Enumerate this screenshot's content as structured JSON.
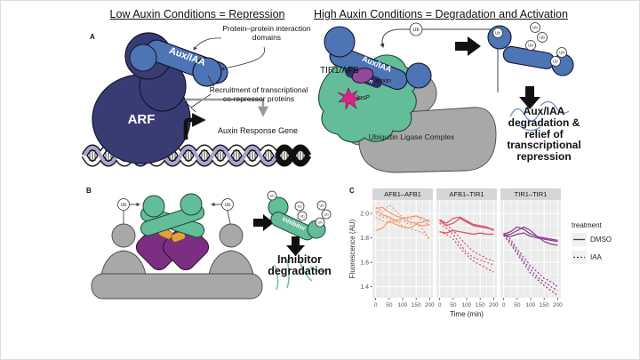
{
  "figure": {
    "panel_a": {
      "label": "A",
      "title": "Low Auxin Conditions = Repression",
      "arf_label": "ARF",
      "aux_iaa_label": "Aux/IAA",
      "callout_interaction": "Protein–protein interaction domains",
      "callout_recruitment": "Recruitment of transcriptional co-repressor proteins",
      "gene_label": "Auxin Response Gene"
    },
    "panel_high_auxin": {
      "title": "High Auxin Conditions = Degradation and Activation",
      "tir1_afb_label": "TIR1/AFB",
      "aux_iaa_label": "Aux/IAA",
      "degron_label": "Degron",
      "auxin_label": "auxin",
      "insp_label": "InsP",
      "ub_label": "Ub",
      "complex_label": "Ubiquitin Ligase Complex",
      "outcome": "Aux/IAA degradation & relief of transcriptional repression"
    },
    "panel_b": {
      "label": "B",
      "ub_label": "Ub",
      "inhibitor_label": "Inhibitor",
      "outcome": "Inhibitor degradation"
    },
    "panel_c": {
      "label": "C"
    }
  },
  "colors": {
    "arf_navy": "#383C72",
    "aux_iaa_blue": "#4D74B4",
    "tir1_green": "#63BD98",
    "auxin_purple": "#8F4A9C",
    "insp_magenta": "#E0218A",
    "complex_gray": "#A8A8A8",
    "panel_b_purple": "#7C2E83",
    "panel_b_orange": "#E2A23B",
    "dna_lavender": "#A9A5CE",
    "facet_afb1_afb1": "#F09B6E",
    "facet_afb1_tir1": "#D94F63",
    "facet_tir1_tir1": "#8B3B8F"
  },
  "chart_data": {
    "type": "line",
    "title": "",
    "ylabel": "Fluorescence (AU)",
    "xlabel": "Time (min)",
    "x": [
      0,
      25,
      50,
      75,
      100,
      125,
      150,
      175,
      200
    ],
    "xticks": [
      0,
      50,
      100,
      150,
      200
    ],
    "yticks": [
      1.4,
      1.6,
      1.8,
      2.0
    ],
    "ylim": [
      1.31,
      2.11
    ],
    "grid": true,
    "legend": {
      "title": "treatment",
      "position": "right",
      "items": [
        {
          "label": "DMSO",
          "linetype": "solid"
        },
        {
          "label": "IAA",
          "linetype": "dotted"
        }
      ]
    },
    "facets": [
      {
        "title": "AFB1–AFB1",
        "color": "#F09B6E",
        "series": [
          {
            "treatment": "DMSO",
            "values": [
              2.04,
              2.05,
              2.01,
              1.98,
              1.96,
              1.97,
              1.98,
              1.96,
              1.93
            ]
          },
          {
            "treatment": "DMSO",
            "values": [
              2.02,
              1.99,
              1.97,
              1.94,
              1.96,
              1.93,
              1.92,
              1.93,
              1.95
            ]
          },
          {
            "treatment": "DMSO",
            "values": [
              1.86,
              1.88,
              1.94,
              1.91,
              1.89,
              1.88,
              1.91,
              1.9,
              1.91
            ]
          },
          {
            "treatment": "IAA",
            "values": [
              2.05,
              2.01,
              2.07,
              2.02,
              1.97,
              1.95,
              1.98,
              1.94,
              1.9
            ]
          },
          {
            "treatment": "IAA",
            "values": [
              2.0,
              1.97,
              1.96,
              1.93,
              1.94,
              1.91,
              1.93,
              1.87,
              1.78
            ]
          },
          {
            "treatment": "IAA",
            "values": [
              1.97,
              1.94,
              1.92,
              1.95,
              1.9,
              1.88,
              1.86,
              1.84,
              1.8
            ]
          }
        ]
      },
      {
        "title": "AFB1–TIR1",
        "color": "#D94F63",
        "series": [
          {
            "treatment": "DMSO",
            "values": [
              1.95,
              1.92,
              1.96,
              1.97,
              1.94,
              1.91,
              1.9,
              1.89,
              1.86
            ]
          },
          {
            "treatment": "DMSO",
            "values": [
              1.94,
              1.9,
              1.92,
              1.96,
              1.93,
              1.9,
              1.89,
              1.88,
              1.87
            ]
          },
          {
            "treatment": "DMSO",
            "values": [
              1.85,
              1.84,
              1.86,
              1.85,
              1.84,
              1.83,
              1.84,
              1.83,
              1.83
            ]
          },
          {
            "treatment": "IAA",
            "values": [
              1.94,
              1.91,
              1.86,
              1.8,
              1.74,
              1.69,
              1.66,
              1.63,
              1.61
            ]
          },
          {
            "treatment": "IAA",
            "values": [
              1.92,
              1.88,
              1.83,
              1.75,
              1.68,
              1.64,
              1.62,
              1.6,
              1.58
            ]
          },
          {
            "treatment": "IAA",
            "values": [
              1.85,
              1.83,
              1.79,
              1.72,
              1.66,
              1.61,
              1.58,
              1.55,
              1.52
            ]
          }
        ]
      },
      {
        "title": "TIR1–TIR1",
        "color": "#8B3B8F",
        "series": [
          {
            "treatment": "DMSO",
            "values": [
              1.83,
              1.85,
              1.89,
              1.87,
              1.83,
              1.81,
              1.8,
              1.79,
              1.78
            ]
          },
          {
            "treatment": "DMSO",
            "values": [
              1.82,
              1.83,
              1.86,
              1.89,
              1.86,
              1.81,
              1.77,
              1.75,
              1.74
            ]
          },
          {
            "treatment": "DMSO",
            "values": [
              1.82,
              1.81,
              1.83,
              1.84,
              1.81,
              1.8,
              1.79,
              1.78,
              1.77
            ]
          },
          {
            "treatment": "IAA",
            "values": [
              1.84,
              1.79,
              1.71,
              1.64,
              1.57,
              1.52,
              1.47,
              1.44,
              1.4
            ]
          },
          {
            "treatment": "IAA",
            "values": [
              1.83,
              1.77,
              1.69,
              1.61,
              1.54,
              1.48,
              1.44,
              1.4,
              1.37
            ]
          },
          {
            "treatment": "IAA",
            "values": [
              1.82,
              1.75,
              1.67,
              1.59,
              1.51,
              1.46,
              1.41,
              1.37,
              1.33
            ]
          }
        ]
      }
    ]
  }
}
